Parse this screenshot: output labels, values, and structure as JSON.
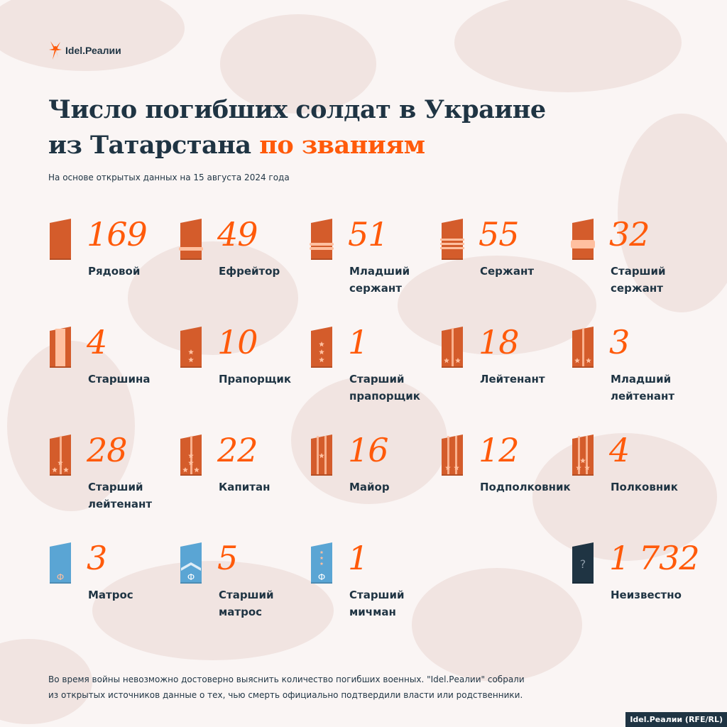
{
  "logo": {
    "text": "Idel.Реалии"
  },
  "title": {
    "line1": "Число погибших солдат в Украине",
    "line2_plain": "из Татарстана ",
    "line2_accent": "по званиям"
  },
  "subtitle": "На основе открытых данных на 15 августа 2024 года",
  "colors": {
    "accent": "#ff5a0a",
    "army": "#d45c2b",
    "navy": "#5aa5d4",
    "unknown": "#1f3443",
    "insignia": "#ffc0a0"
  },
  "chart_data": {
    "type": "table",
    "categories": [
      "Рядовой",
      "Ефрейтор",
      "Младший сержант",
      "Сержант",
      "Старший сержант",
      "Старшина",
      "Прапорщик",
      "Старший прапорщик",
      "Лейтенант",
      "Младший лейтенант",
      "Старший лейтенант",
      "Капитан",
      "Майор",
      "Подполковник",
      "Полковник",
      "Матрос",
      "Старший матрос",
      "Старший мичман",
      "Неизвестно"
    ],
    "values": [
      169,
      49,
      51,
      55,
      32,
      4,
      10,
      1,
      18,
      3,
      28,
      22,
      16,
      12,
      4,
      3,
      5,
      1,
      1732
    ]
  },
  "items": [
    {
      "value": "169",
      "label": "Рядовой",
      "insignia": "army-plain"
    },
    {
      "value": "49",
      "label": "Ефрейтор",
      "insignia": "army-1-stripe"
    },
    {
      "value": "51",
      "label": "Младший сержант",
      "insignia": "army-2-stripes"
    },
    {
      "value": "55",
      "label": "Сержант",
      "insignia": "army-3-stripes"
    },
    {
      "value": "32",
      "label": "Старший сержант",
      "insignia": "army-wide-stripe"
    },
    {
      "value": "4",
      "label": "Старшина",
      "insignia": "army-long-stripe"
    },
    {
      "value": "10",
      "label": "Прапорщик",
      "insignia": "army-2-stars-vertical"
    },
    {
      "value": "1",
      "label": "Старший прапорщик",
      "insignia": "army-3-stars-vertical"
    },
    {
      "value": "18",
      "label": "Лейтенант",
      "insignia": "army-1-line-2-stars"
    },
    {
      "value": "3",
      "label": "Младший лейтенант",
      "insignia": "army-1-line-2-stars-small"
    },
    {
      "value": "28",
      "label": "Старший лейтенант",
      "insignia": "army-1-line-3-stars"
    },
    {
      "value": "22",
      "label": "Капитан",
      "insignia": "army-1-line-4-stars"
    },
    {
      "value": "16",
      "label": "Майор",
      "insignia": "army-2-lines-1-star"
    },
    {
      "value": "12",
      "label": "Подполковник",
      "insignia": "army-2-lines-2-stars"
    },
    {
      "value": "4",
      "label": "Полковник",
      "insignia": "army-2-lines-3-stars"
    },
    {
      "value": "3",
      "label": "Матрос",
      "insignia": "navy-plain"
    },
    {
      "value": "5",
      "label": "Старший матрос",
      "insignia": "navy-chevron"
    },
    {
      "value": "1",
      "label": "Старший мичман",
      "insignia": "navy-3-stars"
    },
    {
      "value": "1 732",
      "label": "Неизвестно",
      "insignia": "unknown-question"
    }
  ],
  "footnote": {
    "line1": "Во время войны невозможно достоверно выяснить количество погибших военных. \"Idel.Реалии\" собрали",
    "line2": "из открытых источников данные о тех, чью смерть официально подтвердили власти или родственники."
  },
  "credit": "Idel.Реалии (RFE/RL)"
}
